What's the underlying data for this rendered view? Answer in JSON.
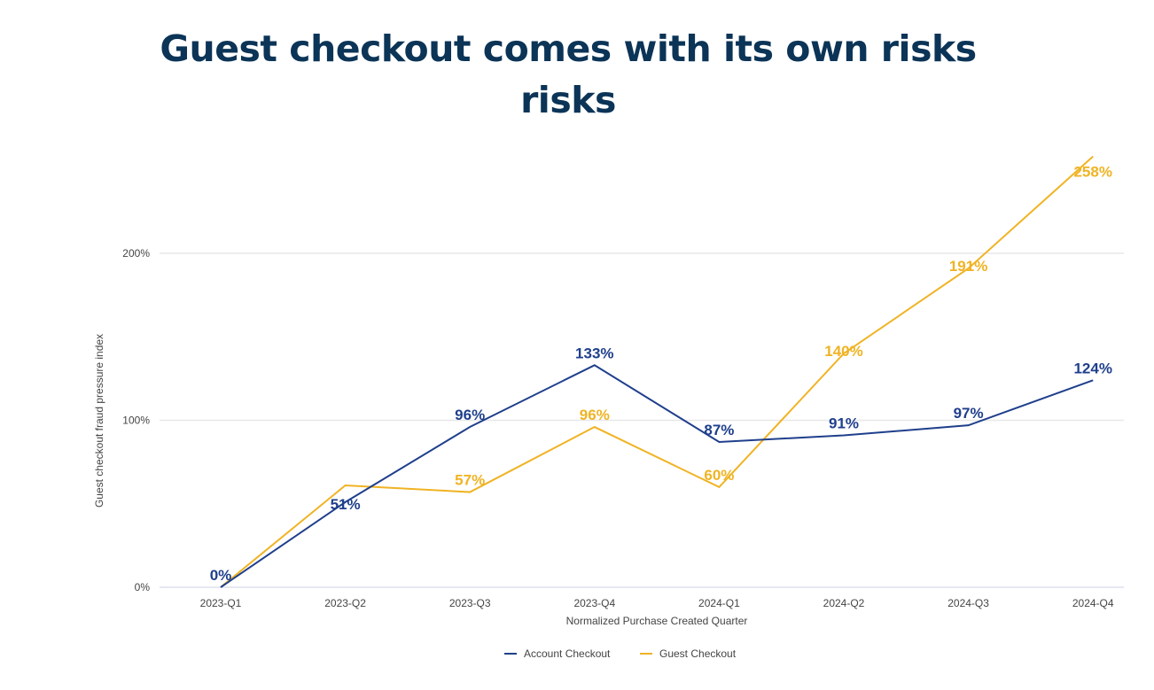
{
  "chart_data": {
    "type": "line",
    "title": "Guest checkout comes with its own risks risks",
    "title_lines": [
      "Guest checkout comes with its own risks",
      "risks"
    ],
    "xlabel": "Normalized Purchase Created Quarter",
    "ylabel": "Guest checkout fraud pressure index",
    "categories": [
      "2023-Q1",
      "2023-Q2",
      "2023-Q3",
      "2023-Q4",
      "2024-Q1",
      "2024-Q2",
      "2024-Q3",
      "2024-Q4"
    ],
    "ylim": [
      0,
      260
    ],
    "yticks": [
      0,
      100,
      200
    ],
    "ytick_labels": [
      "0%",
      "100%",
      "200%"
    ],
    "grid": true,
    "legend_position": "bottom-center",
    "series": [
      {
        "name": "Account Checkout",
        "color": "#1f3f8c",
        "values": [
          0,
          51,
          96,
          133,
          87,
          91,
          97,
          124
        ],
        "labels": [
          "0%",
          "51%",
          "96%",
          "133%",
          "87%",
          "91%",
          "97%",
          "124%"
        ]
      },
      {
        "name": "Guest Checkout",
        "color": "#f0b323",
        "values": [
          0,
          61,
          57,
          96,
          60,
          140,
          191,
          258
        ],
        "labels": [
          null,
          null,
          "57%",
          "96%",
          "60%",
          "140%",
          "191%",
          "258%"
        ]
      }
    ]
  }
}
